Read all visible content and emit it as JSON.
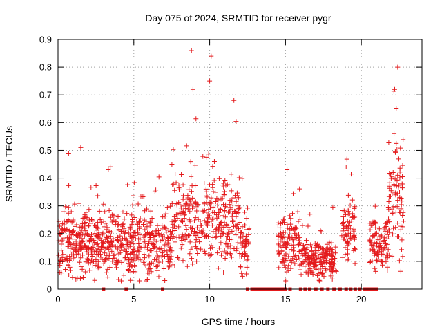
{
  "chart_data": {
    "type": "scatter",
    "title": "Day 075 of 2024, SRMTID for receiver pygr",
    "xlabel": "GPS time / hours",
    "ylabel": "SRMTID / TECUs",
    "xlim": [
      0,
      24
    ],
    "ylim": [
      0,
      0.9
    ],
    "xticks": [
      0,
      5,
      10,
      15,
      20
    ],
    "yticks": [
      0,
      0.1,
      0.2,
      0.3,
      0.4,
      0.5,
      0.6,
      0.7,
      0.8,
      0.9
    ],
    "grid": true,
    "marker": "plus",
    "series_color": "#e41a1c",
    "series": [
      {
        "name": "SRMTID",
        "segments": [
          {
            "x_start": 0.0,
            "x_end": 12.6,
            "base": 0.16,
            "spread": 0.08
          },
          {
            "x_start": 14.5,
            "x_end": 16.0,
            "base": 0.16,
            "spread": 0.07
          },
          {
            "x_start": 16.0,
            "x_end": 18.4,
            "base": 0.11,
            "spread": 0.05
          },
          {
            "x_start": 18.7,
            "x_end": 19.6,
            "base": 0.22,
            "spread": 0.08
          },
          {
            "x_start": 20.5,
            "x_end": 21.8,
            "base": 0.16,
            "spread": 0.06
          },
          {
            "x_start": 21.8,
            "x_end": 22.8,
            "base": 0.3,
            "spread": 0.15
          }
        ],
        "notable_points": [
          {
            "x": 8.8,
            "y": 0.86
          },
          {
            "x": 10.1,
            "y": 0.84
          },
          {
            "x": 10.0,
            "y": 0.75
          },
          {
            "x": 8.9,
            "y": 0.72
          },
          {
            "x": 11.6,
            "y": 0.68
          },
          {
            "x": 22.4,
            "y": 0.8
          },
          {
            "x": 22.2,
            "y": 0.72
          },
          {
            "x": 1.5,
            "y": 0.51
          },
          {
            "x": 0.7,
            "y": 0.49
          },
          {
            "x": 15.1,
            "y": 0.43
          },
          {
            "x": 19.0,
            "y": 0.44
          }
        ],
        "zero_points_x": [
          3.0,
          4.5,
          6.9,
          12.5,
          12.8,
          13.0,
          13.2,
          13.4,
          13.6,
          13.8,
          14.0,
          14.2,
          14.4,
          14.6,
          14.8,
          15.0,
          15.3,
          16.0,
          16.3,
          16.6,
          17.0,
          17.4,
          17.8,
          18.2,
          18.6,
          19.0,
          19.3,
          19.6,
          19.9,
          20.2,
          20.4,
          20.6,
          20.8,
          21.0
        ]
      }
    ]
  }
}
